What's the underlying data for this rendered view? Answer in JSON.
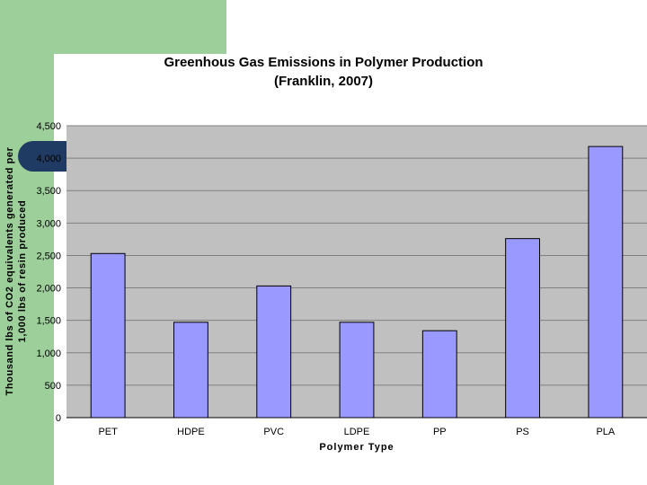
{
  "colors": {
    "background_accent": "#9ccf9a",
    "tab_accent": "#1f3b64",
    "plot_background": "#c0c0c0",
    "bar_fill": "#9999ff",
    "gridline": "#808080"
  },
  "chart_data": {
    "type": "bar",
    "title_line1": "Greenhous Gas Emissions in Polymer Production",
    "title_line2": "(Franklin, 2007)",
    "xlabel": "Polymer Type",
    "ylabel_line1": "Thousand lbs of CO2 equivalents generated per",
    "ylabel_line2": "1,000 lbs of resin produced",
    "categories": [
      "PET",
      "HDPE",
      "PVC",
      "LDPE",
      "PP",
      "PS",
      "PLA"
    ],
    "values": [
      2530,
      1470,
      2030,
      1470,
      1340,
      2760,
      4180
    ],
    "ylim": [
      0,
      4500
    ],
    "yticks": [
      0,
      500,
      1000,
      1500,
      2000,
      2500,
      3000,
      3500,
      4000,
      4500
    ],
    "ytick_labels": [
      "0",
      "500",
      "1,000",
      "1,500",
      "2,000",
      "2,500",
      "3,000",
      "3,500",
      "4,000",
      "4,500"
    ],
    "grid": true,
    "legend": "none"
  }
}
